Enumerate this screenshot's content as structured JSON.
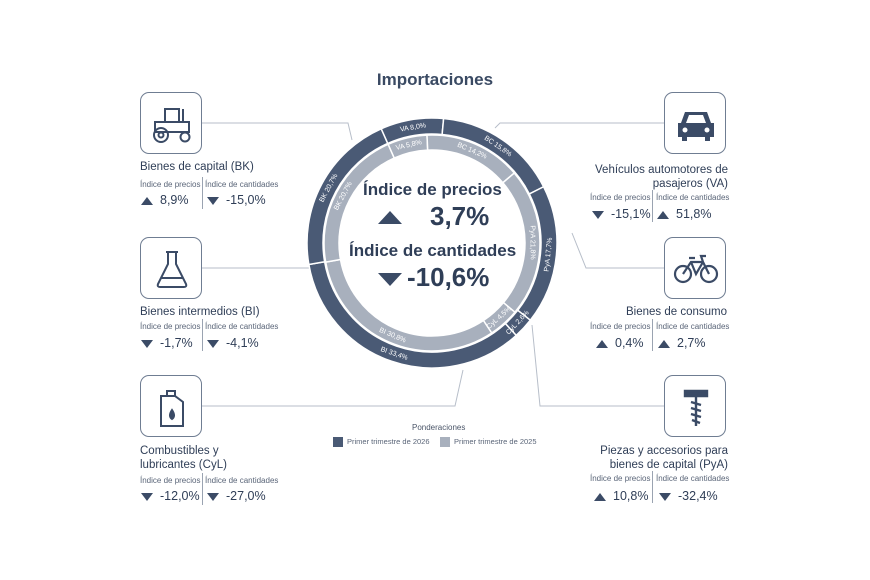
{
  "title": "Importaciones",
  "center": {
    "price_label": "Índice de precios",
    "price_value": "3,7%",
    "qty_label": "Índice de cantidades",
    "qty_value": "-10,6%"
  },
  "sub_labels": {
    "price": "Índice de precios",
    "qty": "Índice de cantidades"
  },
  "categories": [
    {
      "id": "bk",
      "name": "Bienes de capital (BK)",
      "price": "8,9%",
      "price_dir": "up",
      "qty": "-15,0%",
      "qty_dir": "down",
      "icon": "tractor-icon"
    },
    {
      "id": "bi",
      "name": "Bienes intermedios (BI)",
      "price": "-1,7%",
      "price_dir": "down",
      "qty": "-4,1%",
      "qty_dir": "down",
      "icon": "flask-icon"
    },
    {
      "id": "cyl",
      "name": "Combustibles y lubricantes (CyL)",
      "price": "-12,0%",
      "price_dir": "down",
      "qty": "-27,0%",
      "qty_dir": "down",
      "icon": "fuel-can-icon"
    },
    {
      "id": "va",
      "name": "Vehículos automotores de pasajeros (VA)",
      "price": "-15,1%",
      "price_dir": "down",
      "qty": "51,8%",
      "qty_dir": "up",
      "icon": "car-icon"
    },
    {
      "id": "bc",
      "name": "Bienes de consumo",
      "price": "0,4%",
      "price_dir": "up",
      "qty": "2,7%",
      "qty_dir": "up",
      "icon": "bicycle-icon"
    },
    {
      "id": "pya",
      "name": "Piezas y accesorios para bienes de capital (PyA)",
      "price": "10,8%",
      "price_dir": "up",
      "qty": "-32,4%",
      "qty_dir": "down",
      "icon": "screw-icon"
    }
  ],
  "legend": {
    "title": "Ponderaciones",
    "items": [
      "Primer trimestre de 2026",
      "Primer trimestre de 2025"
    ]
  },
  "colors": {
    "series_2026": "#4a5a75",
    "series_2025": "#a8b0bd",
    "text": "#2f3e57"
  },
  "chart_data": {
    "type": "pie",
    "title": "Importaciones",
    "variant": "concentric-donut",
    "series": [
      {
        "name": "Primer trimestre de 2026",
        "slices": [
          {
            "label": "VA",
            "value": 8.0,
            "text": "VA 8,0%"
          },
          {
            "label": "BC",
            "value": 15.8,
            "text": "BC 15,8%"
          },
          {
            "label": "PyA",
            "value": 17.7,
            "text": "PyA 17,7%"
          },
          {
            "label": "CyL",
            "value": 2.6,
            "text": "CyL 2,6%"
          },
          {
            "label": "BI",
            "value": 33.4,
            "text": "BI 33,4%"
          },
          {
            "label": "BK",
            "value": 20.7,
            "text": "BK 20,7%"
          }
        ]
      },
      {
        "name": "Primer trimestre de 2025",
        "slices": [
          {
            "label": "VA",
            "value": 5.8,
            "text": "VA 5,8%"
          },
          {
            "label": "BC",
            "value": 14.2,
            "text": "BC 14,2%"
          },
          {
            "label": "PyA",
            "value": 21.8,
            "text": "PyA 21,8%"
          },
          {
            "label": "CyL",
            "value": 4.5,
            "text": "CyL 4,5%"
          },
          {
            "label": "BI",
            "value": 30.8,
            "text": "BI 30,8%"
          },
          {
            "label": "BK",
            "value": 20.7,
            "text": "BK 20,7%"
          }
        ]
      }
    ],
    "legend": "bottom-center"
  }
}
